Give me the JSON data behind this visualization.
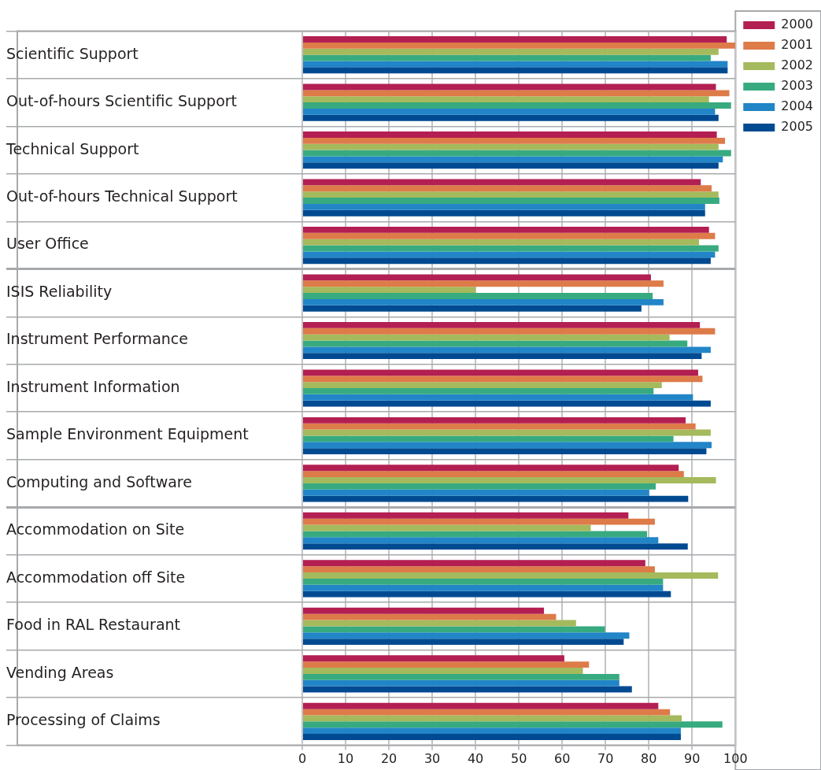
{
  "chart_data": {
    "type": "bar",
    "orientation": "horizontal",
    "categories": [
      "Scientific Support",
      "Out-of-hours Scientific Support",
      "Technical Support",
      "Out-of-hours Technical Support",
      "User Office",
      "ISIS Reliability",
      "Instrument Performance",
      "Instrument Information",
      "Sample Environment Equipment",
      "Computing and Software",
      "Accommodation on Site",
      "Accommodation off Site",
      "Food in RAL Restaurant",
      "Vending Areas",
      "Processing of Claims"
    ],
    "series": [
      {
        "name": "2000",
        "color": "#b31f52",
        "values": [
          98,
          95.5,
          95.7,
          92,
          93.9,
          80.5,
          91.8,
          91.4,
          88.5,
          86.9,
          75.3,
          79.2,
          55.8,
          60.5,
          82.2
        ]
      },
      {
        "name": "2001",
        "color": "#dd7b49",
        "values": [
          100,
          98.6,
          97.6,
          94.5,
          95.3,
          83.4,
          95.3,
          92.4,
          90.8,
          88.1,
          81.4,
          81.4,
          58.6,
          66.2,
          84.9
        ]
      },
      {
        "name": "2002",
        "color": "#a4ba5c",
        "values": [
          96.1,
          93.9,
          96.1,
          96.1,
          91.6,
          40,
          84.8,
          83,
          94.3,
          95.5,
          66.6,
          96,
          63.2,
          64.8,
          87.6
        ]
      },
      {
        "name": "2003",
        "color": "#38aa80",
        "values": [
          94.3,
          99,
          99,
          96.3,
          96.1,
          80.9,
          88.9,
          81.1,
          85.7,
          81.6,
          79.6,
          83.3,
          69.9,
          73.2,
          97
        ]
      },
      {
        "name": "2004",
        "color": "#2185c8",
        "values": [
          98.2,
          95.3,
          97.1,
          93,
          95.3,
          83.4,
          94.3,
          90.2,
          94.5,
          80.1,
          82.2,
          83.3,
          75.5,
          73.2,
          87.4
        ]
      },
      {
        "name": "2005",
        "color": "#004a91",
        "values": [
          98.2,
          96.1,
          96.1,
          93,
          94.3,
          78.3,
          92.2,
          94.3,
          93.3,
          89.1,
          89,
          85.1,
          74.2,
          76.1,
          87.4
        ]
      }
    ],
    "xlim": [
      0,
      100
    ],
    "xticks": [
      0,
      10,
      20,
      30,
      40,
      50,
      60,
      70,
      80,
      90,
      100
    ],
    "grid": true,
    "legend": "top right"
  }
}
